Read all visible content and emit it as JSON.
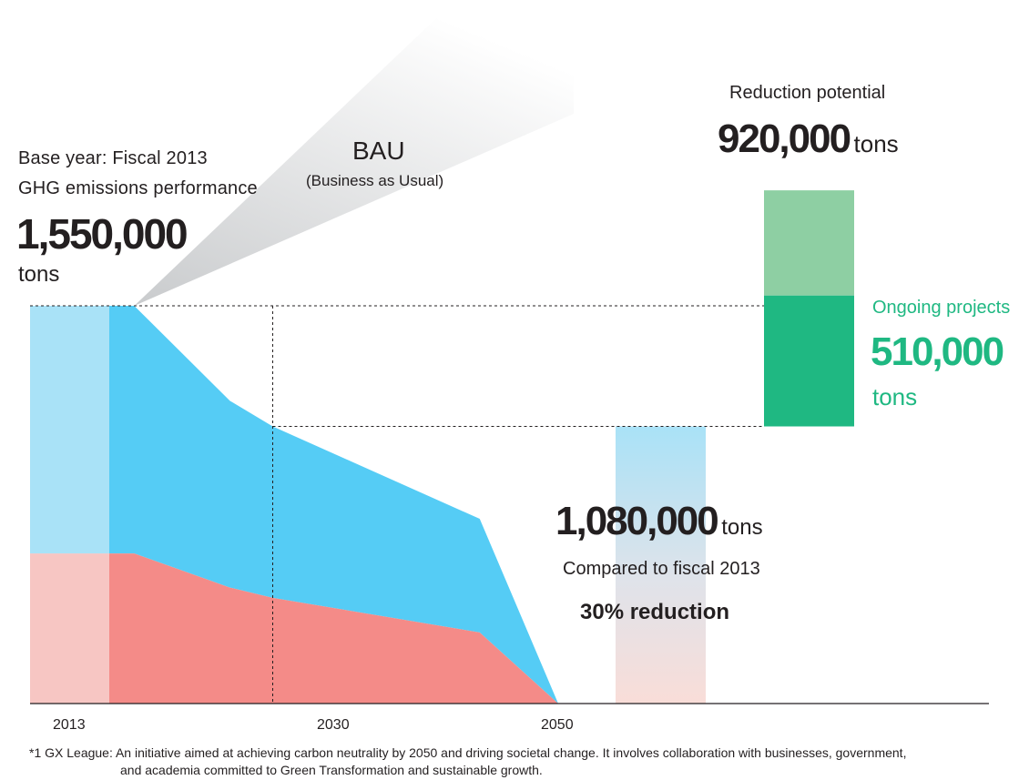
{
  "colors": {
    "scope1": "#f48b88",
    "scope1_light": "#f7c6c3",
    "scope2": "#55ccf5",
    "scope2_light": "#a9e2f7",
    "bau_wedge": "#d9dbdd",
    "reduction_light": "#8ecfa3",
    "ongoing": "#1fb882",
    "axis": "#231f20"
  },
  "texts": {
    "base_year_line1": "Base year: Fiscal 2013",
    "base_year_line2": "GHG emissions performance",
    "base_value": "1,550,000",
    "base_unit": "tons",
    "bau_title": "BAU",
    "bau_subtitle": "(Business as Usual)",
    "reduction_potential_label": "Reduction potential",
    "reduction_potential_value": "920,000",
    "reduction_potential_unit": "tons",
    "ongoing_label": "Ongoing projects",
    "ongoing_value": "510,000",
    "ongoing_unit": "tons",
    "target_value": "1,080,000",
    "target_unit": "tons",
    "compared_label": "Compared to fiscal 2013",
    "reduction_pct": "30% reduction",
    "footnote_line1": "*1 GX League: An initiative aimed at achieving carbon neutrality by 2050 and driving societal change. It involves collaboration with businesses, government,",
    "footnote_line2": "and academia committed to Green Transformation and sustainable growth."
  },
  "chart_data": {
    "type": "area",
    "x_ticks": [
      "2013",
      "2030",
      "2050"
    ],
    "base_year": {
      "year": "2013",
      "total": 1550000
    },
    "stacked_area": {
      "x": [
        2016.8,
        2020.3,
        2027,
        2030,
        2044.5,
        2050
      ],
      "series": [
        {
          "values": [
            585000,
            585000,
            452000,
            412000,
            277000,
            0
          ]
        },
        {
          "values": [
            965000,
            965000,
            728000,
            668000,
            443000,
            0
          ]
        }
      ]
    },
    "target": {
      "value": 1080000,
      "reduction_pct": 30,
      "compared_to": "fiscal 2013"
    },
    "reduction_potential": {
      "total": 920000,
      "ongoing_projects": 510000
    },
    "bau": "BAU",
    "ylim": [
      0,
      1550000
    ]
  }
}
